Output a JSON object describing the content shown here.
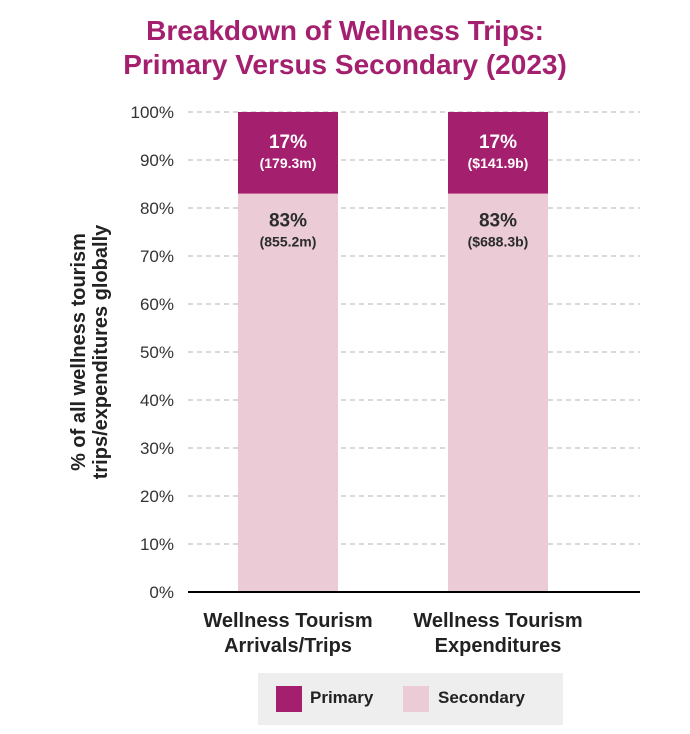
{
  "title_line1": "Breakdown of Wellness Trips:",
  "title_line2": "Primary Versus Secondary (2023)",
  "ylabel_line1": "% of all wellness tourism",
  "ylabel_line2": "trips/expenditures globally",
  "colors": {
    "primary": "#a51f6f",
    "secondary": "#eacbd6",
    "title": "#a51f6f"
  },
  "legend": [
    {
      "name": "Primary",
      "color": "#a51f6f"
    },
    {
      "name": "Secondary",
      "color": "#eacbd6"
    }
  ],
  "chart_data": {
    "type": "bar",
    "stacked": true,
    "title": "Breakdown of Wellness Trips: Primary Versus Secondary (2023)",
    "ylabel": "% of all wellness tourism trips/expenditures globally",
    "xlabel": "",
    "ylim": [
      0,
      100
    ],
    "yticks": [
      "0%",
      "10%",
      "20%",
      "30%",
      "40%",
      "50%",
      "60%",
      "70%",
      "80%",
      "90%",
      "100%"
    ],
    "grid": true,
    "legend_position": "bottom",
    "categories": [
      [
        "Wellness Tourism",
        "Arrivals/Trips"
      ],
      [
        "Wellness Tourism",
        "Expenditures"
      ]
    ],
    "series": [
      {
        "name": "Secondary",
        "values": [
          83,
          83
        ],
        "labels": [
          "83%",
          "83%"
        ],
        "sublabels": [
          "(855.2m)",
          "($688.3b)"
        ]
      },
      {
        "name": "Primary",
        "values": [
          17,
          17
        ],
        "labels": [
          "17%",
          "17%"
        ],
        "sublabels": [
          "(179.3m)",
          "($141.9b)"
        ]
      }
    ]
  }
}
